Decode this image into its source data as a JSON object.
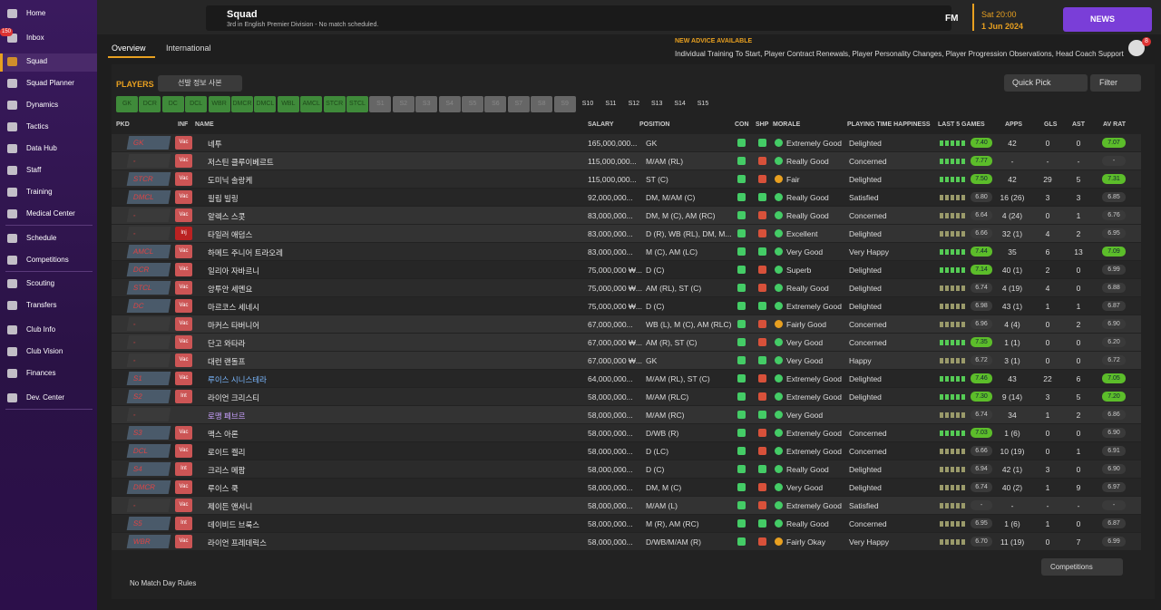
{
  "sidebar": {
    "items": [
      "Home",
      "Inbox",
      "Squad",
      "Squad Planner",
      "Dynamics",
      "Tactics",
      "Data Hub",
      "Staff",
      "Training",
      "Medical Center",
      "Schedule",
      "Competitions",
      "Scouting",
      "Transfers",
      "Club Info",
      "Club Vision",
      "Finances",
      "Dev. Center"
    ],
    "inbox_badge": "150"
  },
  "header": {
    "title": "Squad",
    "subtitle": "3rd in English Premier Division - No match scheduled.",
    "logo": "FM",
    "time": "Sat 20:00",
    "date": "1 Jun 2024",
    "news": "NEWS",
    "notifications": "8"
  },
  "tabs": [
    "Overview",
    "International"
  ],
  "advice": {
    "title": "NEW ADVICE AVAILABLE",
    "text": "Individual Training To Start, Player Contract Renewals, Player Personality Changes, Player Progression Observations, Head Coach Support"
  },
  "players": {
    "title": "PLAYERS",
    "view": "선발 정보 사본",
    "quick_pick": "Quick Pick",
    "filter": "Filter",
    "slots_main": [
      "GK",
      "DCR",
      "DC",
      "DCL",
      "WBR",
      "DMCR",
      "DMCL",
      "WBL",
      "AMCL",
      "STCR",
      "STCL"
    ],
    "slots_subs": [
      "S1",
      "S2",
      "S3",
      "S4",
      "S5",
      "S6",
      "S7",
      "S8",
      "S9"
    ],
    "slots_extra": [
      "S10",
      "S11",
      "S12",
      "S13",
      "S14",
      "S15"
    ]
  },
  "table": {
    "columns": [
      "PKD",
      "INF",
      "NAME",
      "SALARY",
      "POSITION",
      "CON",
      "SHP",
      "MORALE",
      "PLAYING TIME HAPPINESS",
      "LAST 5 GAMES",
      "APPS",
      "GLS",
      "AST",
      "AV RAT"
    ],
    "rows": [
      {
        "pkd": "GK",
        "inf": "Vac",
        "name": "네투",
        "salary": "165,000,000...",
        "position": "GK",
        "morale": "Extremely Good",
        "pth": "Delighted",
        "last5": "7.40",
        "apps": "42",
        "gls": "0",
        "ast": "0",
        "avrat": "7.07"
      },
      {
        "pkd": "-",
        "inf": "Vac",
        "name": "저스틴 클루이베르트",
        "salary": "115,000,000...",
        "position": "M/AM (RL)",
        "morale": "Really Good",
        "pth": "Concerned",
        "last5": "7.77",
        "apps": "-",
        "gls": "-",
        "ast": "-",
        "avrat": "-"
      },
      {
        "pkd": "STCR",
        "inf": "Vac",
        "name": "도미닉 솔랑케",
        "salary": "115,000,000...",
        "position": "ST (C)",
        "morale": "Fair",
        "pth": "Delighted",
        "last5": "7.50",
        "apps": "42",
        "gls": "29",
        "ast": "5",
        "avrat": "7.31"
      },
      {
        "pkd": "DMCL",
        "inf": "Vac",
        "name": "필립 빌링",
        "salary": "92,000,000...",
        "position": "DM, M/AM (C)",
        "morale": "Really Good",
        "pth": "Satisfied",
        "last5": "6.80",
        "apps": "16 (26)",
        "gls": "3",
        "ast": "3",
        "avrat": "6.85"
      },
      {
        "pkd": "-",
        "inf": "Vac",
        "name": "알렉스 스콧",
        "salary": "83,000,000...",
        "position": "DM, M (C), AM (RC)",
        "morale": "Really Good",
        "pth": "Concerned",
        "last5": "6.64",
        "apps": "4 (24)",
        "gls": "0",
        "ast": "1",
        "avrat": "6.76"
      },
      {
        "pkd": "-",
        "inf": "Inj",
        "name": "타일러 애덤스",
        "salary": "83,000,000...",
        "position": "D (R), WB (RL), DM, M...",
        "morale": "Excellent",
        "pth": "Delighted",
        "last5": "6.66",
        "apps": "32 (1)",
        "gls": "4",
        "ast": "2",
        "avrat": "6.95"
      },
      {
        "pkd": "AMCL",
        "inf": "Vac",
        "name": "하메드 주니어 트라오레",
        "salary": "83,000,000...",
        "position": "M (C), AM (LC)",
        "morale": "Very Good",
        "pth": "Very Happy",
        "last5": "7.44",
        "apps": "35",
        "gls": "6",
        "ast": "13",
        "avrat": "7.09"
      },
      {
        "pkd": "DCR",
        "inf": "Vac",
        "name": "일리아 자바르니",
        "salary": "75,000,000 ₩...",
        "position": "D (C)",
        "morale": "Superb",
        "pth": "Delighted",
        "last5": "7.14",
        "apps": "40 (1)",
        "gls": "2",
        "ast": "0",
        "avrat": "6.99"
      },
      {
        "pkd": "STCL",
        "inf": "Vac",
        "name": "앙투안 세멘요",
        "salary": "75,000,000 ₩...",
        "position": "AM (RL), ST (C)",
        "morale": "Really Good",
        "pth": "Delighted",
        "last5": "6.74",
        "apps": "4 (19)",
        "gls": "4",
        "ast": "0",
        "avrat": "6.88"
      },
      {
        "pkd": "DC",
        "inf": "Vac",
        "name": "마르코스 세네시",
        "salary": "75,000,000 ₩...",
        "position": "D (C)",
        "morale": "Extremely Good",
        "pth": "Delighted",
        "last5": "6.98",
        "apps": "43 (1)",
        "gls": "1",
        "ast": "1",
        "avrat": "6.87"
      },
      {
        "pkd": "-",
        "inf": "Vac",
        "name": "마커스 타버니어",
        "salary": "67,000,000...",
        "position": "WB (L), M (C), AM (RLC)",
        "morale": "Fairly Good",
        "pth": "Concerned",
        "last5": "6.96",
        "apps": "4 (4)",
        "gls": "0",
        "ast": "2",
        "avrat": "6.90"
      },
      {
        "pkd": "-",
        "inf": "Vac",
        "name": "단고 와타라",
        "salary": "67,000,000 ₩...",
        "position": "AM (R), ST (C)",
        "morale": "Very Good",
        "pth": "Concerned",
        "last5": "7.35",
        "apps": "1 (1)",
        "gls": "0",
        "ast": "0",
        "avrat": "6.20"
      },
      {
        "pkd": "-",
        "inf": "Vac",
        "name": "대런 랜돌프",
        "salary": "67,000,000 ₩...",
        "position": "GK",
        "morale": "Very Good",
        "pth": "Happy",
        "last5": "6.72",
        "apps": "3 (1)",
        "gls": "0",
        "ast": "0",
        "avrat": "6.72"
      },
      {
        "pkd": "S1",
        "inf": "Vac",
        "name": "루이스 시니스테라",
        "salary": "64,000,000...",
        "position": "M/AM (RL), ST (C)",
        "morale": "Extremely Good",
        "pth": "Delighted",
        "last5": "7.46",
        "apps": "43",
        "gls": "22",
        "ast": "6",
        "avrat": "7.05"
      },
      {
        "pkd": "S2",
        "inf": "Int",
        "name": "라이언 크리스티",
        "salary": "58,000,000...",
        "position": "M/AM (RLC)",
        "morale": "Extremely Good",
        "pth": "Delighted",
        "last5": "7.30",
        "apps": "9 (14)",
        "gls": "3",
        "ast": "5",
        "avrat": "7.20"
      },
      {
        "pkd": "-",
        "name": "로맹 페브르",
        "salary": "58,000,000...",
        "position": "M/AM (RC)",
        "morale": "Very Good",
        "last5": "6.74",
        "apps": "34",
        "gls": "1",
        "ast": "2",
        "avrat": "6.86"
      },
      {
        "pkd": "S3",
        "inf": "Vac",
        "name": "맥스 아론",
        "salary": "58,000,000...",
        "position": "D/WB (R)",
        "morale": "Extremely Good",
        "pth": "Concerned",
        "last5": "7.03",
        "apps": "1 (6)",
        "gls": "0",
        "ast": "0",
        "avrat": "6.90"
      },
      {
        "pkd": "DCL",
        "inf": "Vac",
        "name": "로이드 켈리",
        "salary": "58,000,000...",
        "position": "D (LC)",
        "morale": "Extremely Good",
        "pth": "Concerned",
        "last5": "6.66",
        "apps": "10 (19)",
        "gls": "0",
        "ast": "1",
        "avrat": "6.91"
      },
      {
        "pkd": "S4",
        "inf": "Int",
        "name": "크리스 메팜",
        "salary": "58,000,000...",
        "position": "D (C)",
        "morale": "Really Good",
        "pth": "Delighted",
        "last5": "6.94",
        "apps": "42 (1)",
        "gls": "3",
        "ast": "0",
        "avrat": "6.90"
      },
      {
        "pkd": "DMCR",
        "inf": "Vac",
        "name": "루이스 쿡",
        "salary": "58,000,000...",
        "position": "DM, M (C)",
        "morale": "Very Good",
        "pth": "Delighted",
        "last5": "6.74",
        "apps": "40 (2)",
        "gls": "1",
        "ast": "9",
        "avrat": "6.97"
      },
      {
        "pkd": "-",
        "inf": "Vac",
        "name": "제이든 앤서니",
        "salary": "58,000,000...",
        "position": "M/AM (L)",
        "morale": "Extremely Good",
        "pth": "Satisfied",
        "last5": "-",
        "apps": "-",
        "gls": "-",
        "ast": "-",
        "avrat": "-"
      },
      {
        "pkd": "S5",
        "inf": "Int",
        "name": "데이비드 브룩스",
        "salary": "58,000,000...",
        "position": "M (R), AM (RC)",
        "morale": "Really Good",
        "pth": "Concerned",
        "last5": "6.95",
        "apps": "1 (6)",
        "gls": "1",
        "ast": "0",
        "avrat": "6.87"
      },
      {
        "pkd": "WBR",
        "inf": "Vac",
        "name": "라이언 프레데릭스",
        "salary": "58,000,000...",
        "position": "D/WB/M/AM (R)",
        "morale": "Fairly Okay",
        "pth": "Very Happy",
        "last5": "6.70",
        "apps": "11 (19)",
        "gls": "0",
        "ast": "7",
        "avrat": "6.99"
      }
    ]
  },
  "footer": {
    "rules": "No Match Day Rules",
    "competitions": "Competitions"
  }
}
